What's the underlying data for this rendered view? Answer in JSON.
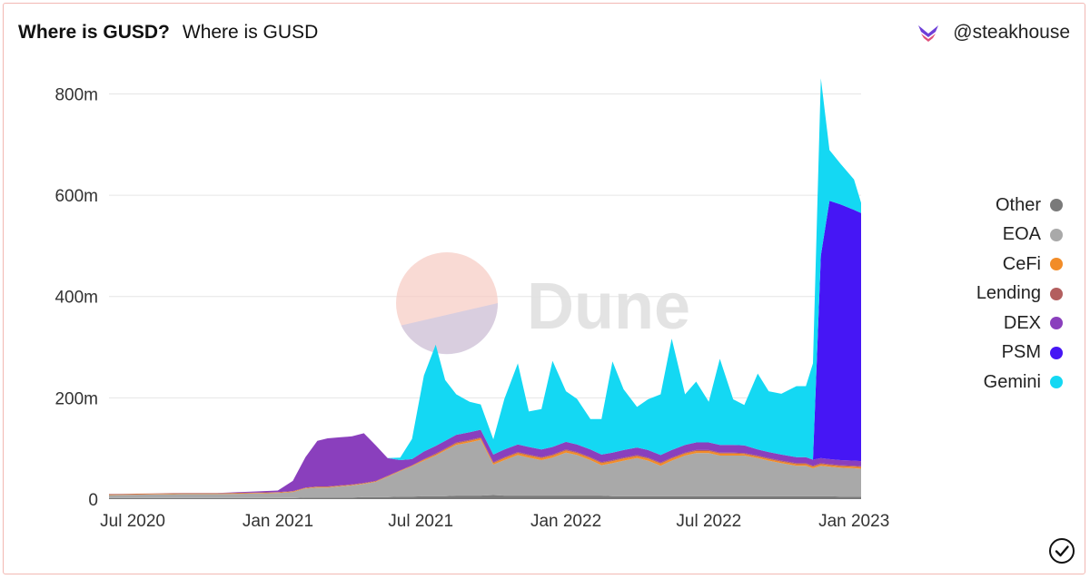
{
  "header": {
    "title": "Where is GUSD?",
    "subtitle": "Where is GUSD"
  },
  "brand": {
    "handle": "@steakhouse",
    "icon": "steakhouse-logo-icon"
  },
  "watermark": {
    "text": "Dune"
  },
  "chart_data": {
    "type": "area",
    "stacked": true,
    "ylim": [
      0,
      860
    ],
    "y_ticks": [
      {
        "value": 0,
        "label": "0"
      },
      {
        "value": 200,
        "label": "200m"
      },
      {
        "value": 400,
        "label": "400m"
      },
      {
        "value": 600,
        "label": "600m"
      },
      {
        "value": 800,
        "label": "800m"
      }
    ],
    "x_ticks": [
      "Jul 2020",
      "Jan 2021",
      "Jul 2021",
      "Jan 2022",
      "Jul 2022",
      "Jan 2023"
    ],
    "x": [
      "2020-06-01",
      "2020-07-15",
      "2020-09-01",
      "2020-10-15",
      "2020-12-01",
      "2021-01-01",
      "2021-01-20",
      "2021-02-05",
      "2021-02-20",
      "2021-03-05",
      "2021-03-20",
      "2021-04-05",
      "2021-04-20",
      "2021-05-05",
      "2021-05-20",
      "2021-06-05",
      "2021-06-20",
      "2021-07-05",
      "2021-07-20",
      "2021-08-01",
      "2021-08-15",
      "2021-09-01",
      "2021-09-15",
      "2021-10-01",
      "2021-10-15",
      "2021-11-01",
      "2021-11-15",
      "2021-12-01",
      "2021-12-15",
      "2022-01-01",
      "2022-01-15",
      "2022-02-01",
      "2022-02-15",
      "2022-03-01",
      "2022-03-15",
      "2022-04-01",
      "2022-04-15",
      "2022-05-01",
      "2022-05-15",
      "2022-06-01",
      "2022-06-15",
      "2022-07-01",
      "2022-07-15",
      "2022-08-01",
      "2022-08-15",
      "2022-09-01",
      "2022-09-15",
      "2022-10-01",
      "2022-10-20",
      "2022-11-01",
      "2022-11-10",
      "2022-11-20",
      "2022-12-01",
      "2022-12-15",
      "2023-01-01",
      "2023-01-10"
    ],
    "series": [
      {
        "name": "Other",
        "color": "#7a7a7a",
        "values": [
          2,
          2,
          2,
          2,
          2,
          2,
          2,
          3,
          3,
          3,
          3,
          3,
          4,
          4,
          4,
          5,
          5,
          6,
          6,
          6,
          7,
          7,
          7,
          8,
          7,
          7,
          7,
          7,
          7,
          7,
          7,
          7,
          7,
          6,
          6,
          6,
          6,
          6,
          6,
          6,
          6,
          6,
          6,
          6,
          6,
          6,
          6,
          6,
          6,
          6,
          6,
          6,
          6,
          5,
          5,
          5
        ]
      },
      {
        "name": "EOA",
        "color": "#a9a9a9",
        "values": [
          6,
          7,
          8,
          8,
          9,
          10,
          12,
          18,
          20,
          20,
          22,
          24,
          26,
          30,
          40,
          50,
          60,
          70,
          80,
          90,
          100,
          105,
          110,
          60,
          70,
          80,
          75,
          70,
          75,
          85,
          80,
          70,
          60,
          65,
          70,
          75,
          70,
          60,
          70,
          80,
          85,
          85,
          80,
          80,
          80,
          75,
          70,
          65,
          60,
          60,
          55,
          60,
          58,
          57,
          56,
          55
        ]
      },
      {
        "name": "CeFi",
        "color": "#f28c28",
        "values": [
          1,
          1,
          1,
          1,
          1,
          1,
          1,
          1,
          1,
          1,
          1,
          1,
          1,
          1,
          1,
          1,
          1,
          2,
          2,
          2,
          3,
          3,
          3,
          3,
          4,
          4,
          4,
          4,
          4,
          4,
          4,
          4,
          4,
          4,
          4,
          4,
          4,
          4,
          4,
          4,
          4,
          4,
          4,
          4,
          3,
          3,
          3,
          3,
          3,
          3,
          3,
          3,
          3,
          3,
          3,
          3
        ]
      },
      {
        "name": "Lending",
        "color": "#b35f5f",
        "values": [
          1,
          1,
          1,
          1,
          1,
          1,
          1,
          1,
          1,
          1,
          1,
          1,
          1,
          1,
          1,
          1,
          1,
          1,
          2,
          2,
          2,
          2,
          2,
          2,
          2,
          2,
          2,
          2,
          2,
          2,
          2,
          2,
          2,
          2,
          2,
          2,
          2,
          2,
          2,
          2,
          2,
          2,
          2,
          2,
          2,
          2,
          2,
          2,
          2,
          2,
          2,
          2,
          2,
          2,
          2,
          2
        ]
      },
      {
        "name": "DEX",
        "color": "#8a3fbd",
        "values": [
          0,
          0,
          0,
          0,
          2,
          3,
          20,
          60,
          90,
          95,
          95,
          95,
          98,
          70,
          35,
          20,
          12,
          15,
          15,
          15,
          15,
          15,
          15,
          15,
          15,
          15,
          15,
          15,
          15,
          15,
          15,
          15,
          15,
          15,
          15,
          15,
          15,
          15,
          15,
          15,
          15,
          15,
          15,
          15,
          15,
          12,
          12,
          12,
          12,
          12,
          12,
          10,
          10,
          10,
          10,
          10
        ]
      },
      {
        "name": "PSM",
        "color": "#4616f5",
        "values": [
          0,
          0,
          0,
          0,
          0,
          0,
          0,
          0,
          0,
          0,
          0,
          0,
          0,
          0,
          0,
          0,
          0,
          0,
          0,
          0,
          0,
          0,
          0,
          0,
          0,
          0,
          0,
          0,
          0,
          0,
          0,
          0,
          0,
          0,
          0,
          0,
          0,
          0,
          0,
          0,
          0,
          0,
          0,
          0,
          0,
          0,
          0,
          0,
          0,
          0,
          0,
          400,
          510,
          505,
          495,
          490
        ]
      },
      {
        "name": "Gemini",
        "color": "#14d8f3",
        "values": [
          0,
          0,
          0,
          0,
          0,
          0,
          0,
          0,
          0,
          0,
          0,
          0,
          0,
          0,
          0,
          5,
          40,
          150,
          200,
          120,
          80,
          60,
          50,
          30,
          100,
          160,
          70,
          80,
          170,
          100,
          90,
          60,
          70,
          180,
          120,
          80,
          100,
          120,
          220,
          100,
          120,
          80,
          170,
          90,
          80,
          150,
          120,
          120,
          140,
          140,
          190,
          350,
          100,
          80,
          60,
          20
        ]
      }
    ]
  }
}
